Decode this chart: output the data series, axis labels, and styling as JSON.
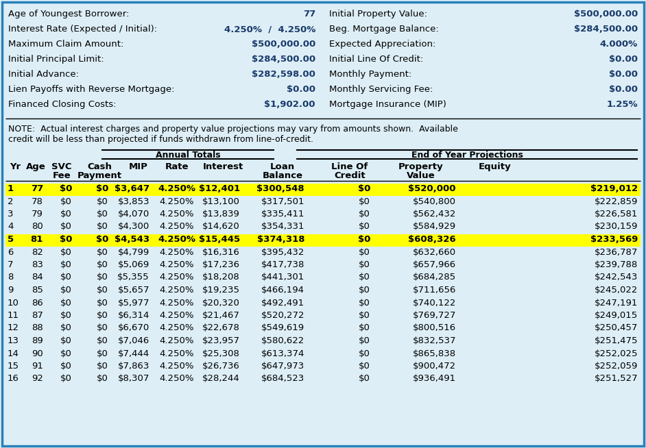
{
  "bg_color": "#ddeef6",
  "border_color": "#2980b9",
  "blue_bold_color": "#1a3a6b",
  "header_info": [
    [
      "Age of Youngest Borrower:",
      "77",
      "Initial Property Value:",
      "$500,000.00"
    ],
    [
      "Interest Rate (Expected / Initial):",
      "4.250%  /  4.250%",
      "Beg. Mortgage Balance:",
      "$284,500.00"
    ],
    [
      "Maximum Claim Amount:",
      "$500,000.00",
      "Expected Appreciation:",
      "4.000%"
    ],
    [
      "Initial Principal Limit:",
      "$284,500.00",
      "Initial Line Of Credit:",
      "$0.00"
    ],
    [
      "Initial Advance:",
      "$282,598.00",
      "Monthly Payment:",
      "$0.00"
    ],
    [
      "Lien Payoffs with Reverse Mortgage:",
      "$0.00",
      "Monthly Servicing Fee:",
      "$0.00"
    ],
    [
      "Financed Closing Costs:",
      "$1,902.00",
      "Mortgage Insurance (MIP)",
      "1.25%"
    ]
  ],
  "note_line1": "NOTE:  Actual interest charges and property value projections may vary from amounts shown.  Available",
  "note_line2": "credit will be less than projected if funds withdrawn from line-of-credit.",
  "annual_totals_label": "Annual Totals",
  "end_of_year_label": "End of Year Projections",
  "col_headers": [
    [
      "Yr",
      "Age",
      "SVC",
      "Cash",
      "MIP",
      "Rate",
      "Interest",
      "Loan",
      "Line Of",
      "Property",
      "Equity"
    ],
    [
      "",
      "",
      "Fee",
      "Payment",
      "",
      "",
      "",
      "Balance",
      "Credit",
      "Value",
      ""
    ]
  ],
  "table_data": [
    [
      "1",
      "77",
      "$0",
      "$0",
      "$3,647",
      "4.250%",
      "$12,401",
      "$300,548",
      "$0",
      "$520,000",
      "$219,012"
    ],
    [
      "2",
      "78",
      "$0",
      "$0",
      "$3,853",
      "4.250%",
      "$13,100",
      "$317,501",
      "$0",
      "$540,800",
      "$222,859"
    ],
    [
      "3",
      "79",
      "$0",
      "$0",
      "$4,070",
      "4.250%",
      "$13,839",
      "$335,411",
      "$0",
      "$562,432",
      "$226,581"
    ],
    [
      "4",
      "80",
      "$0",
      "$0",
      "$4,300",
      "4.250%",
      "$14,620",
      "$354,331",
      "$0",
      "$584,929",
      "$230,159"
    ],
    [
      "5",
      "81",
      "$0",
      "$0",
      "$4,543",
      "4.250%",
      "$15,445",
      "$374,318",
      "$0",
      "$608,326",
      "$233,569"
    ],
    [
      "6",
      "82",
      "$0",
      "$0",
      "$4,799",
      "4.250%",
      "$16,316",
      "$395,432",
      "$0",
      "$632,660",
      "$236,787"
    ],
    [
      "7",
      "83",
      "$0",
      "$0",
      "$5,069",
      "4.250%",
      "$17,236",
      "$417,738",
      "$0",
      "$657,966",
      "$239,788"
    ],
    [
      "8",
      "84",
      "$0",
      "$0",
      "$5,355",
      "4.250%",
      "$18,208",
      "$441,301",
      "$0",
      "$684,285",
      "$242,543"
    ],
    [
      "9",
      "85",
      "$0",
      "$0",
      "$5,657",
      "4.250%",
      "$19,235",
      "$466,194",
      "$0",
      "$711,656",
      "$245,022"
    ],
    [
      "10",
      "86",
      "$0",
      "$0",
      "$5,977",
      "4.250%",
      "$20,320",
      "$492,491",
      "$0",
      "$740,122",
      "$247,191"
    ],
    [
      "11",
      "87",
      "$0",
      "$0",
      "$6,314",
      "4.250%",
      "$21,467",
      "$520,272",
      "$0",
      "$769,727",
      "$249,015"
    ],
    [
      "12",
      "88",
      "$0",
      "$0",
      "$6,670",
      "4.250%",
      "$22,678",
      "$549,619",
      "$0",
      "$800,516",
      "$250,457"
    ],
    [
      "13",
      "89",
      "$0",
      "$0",
      "$7,046",
      "4.250%",
      "$23,957",
      "$580,622",
      "$0",
      "$832,537",
      "$251,475"
    ],
    [
      "14",
      "90",
      "$0",
      "$0",
      "$7,444",
      "4.250%",
      "$25,308",
      "$613,374",
      "$0",
      "$865,838",
      "$252,025"
    ],
    [
      "15",
      "91",
      "$0",
      "$0",
      "$7,863",
      "4.250%",
      "$26,736",
      "$647,973",
      "$0",
      "$900,472",
      "$252,059"
    ],
    [
      "16",
      "92",
      "$0",
      "$0",
      "$8,307",
      "4.250%",
      "$28,244",
      "$684,523",
      "$0",
      "$936,491",
      "$251,527"
    ]
  ],
  "highlighted_rows": [
    0,
    4
  ],
  "highlight_color": "#ffff00"
}
